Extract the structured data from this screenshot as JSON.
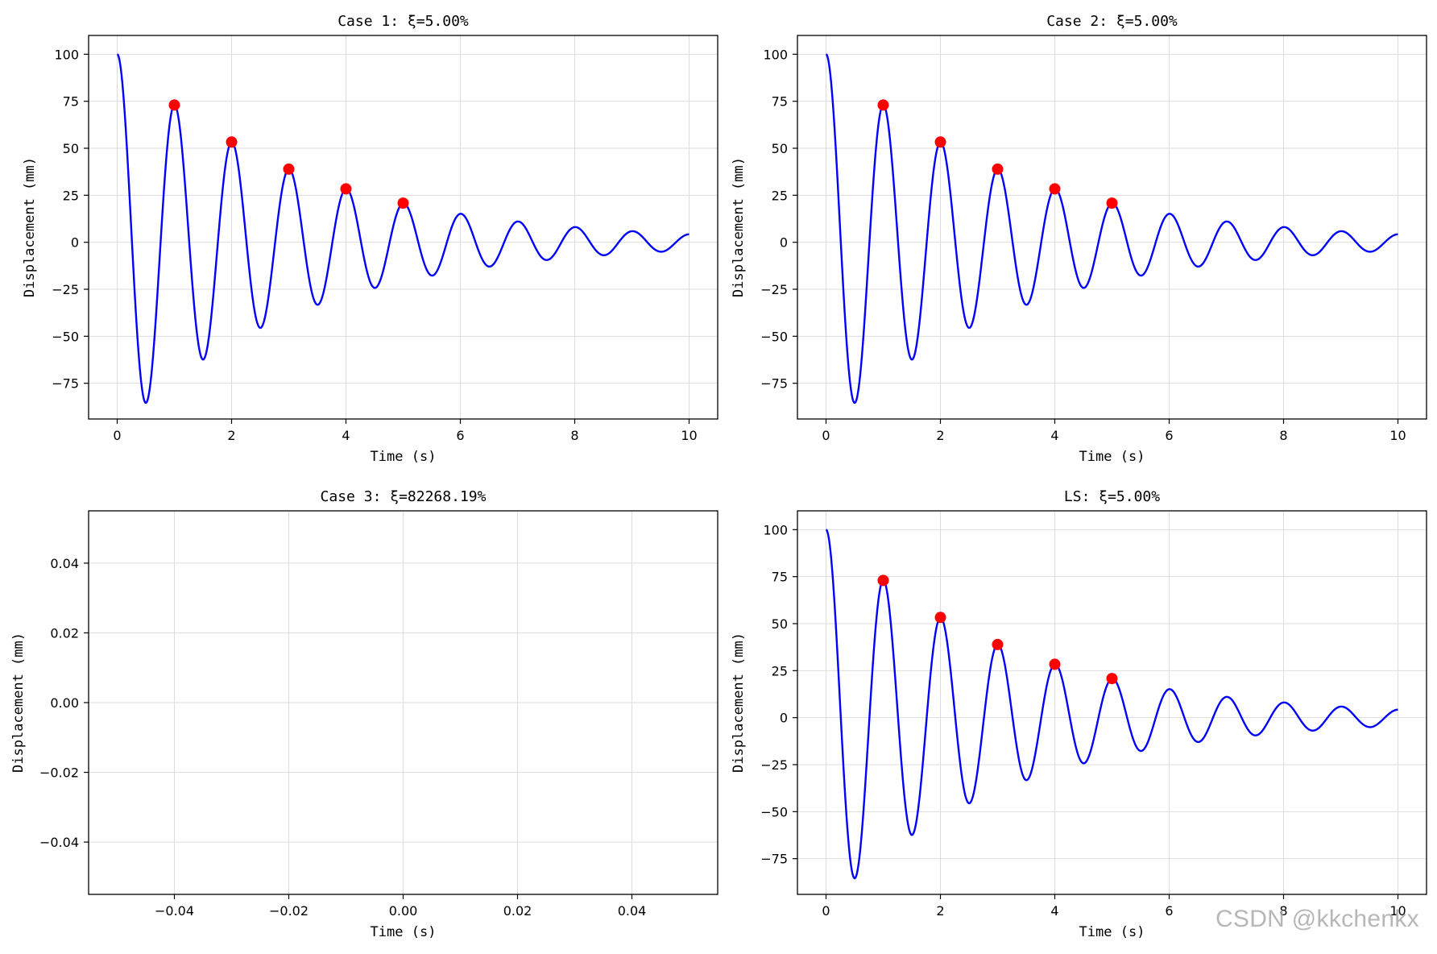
{
  "watermark": "CSDN @kkchenkx",
  "colors": {
    "line": "#0000ff",
    "peak": "#ff0000",
    "grid": "#dddddd",
    "axes": "#000000"
  },
  "chart_data": [
    {
      "type": "line",
      "title": "Case 1: ξ=5.00%",
      "xlabel": "Time (s)",
      "ylabel": "Displacement (mm)",
      "xlim": [
        -0.5,
        10.5
      ],
      "ylim": [
        -94,
        110
      ],
      "xticks": [
        0,
        2,
        4,
        6,
        8,
        10
      ],
      "xtick_labels": [
        "0",
        "2",
        "4",
        "6",
        "8",
        "10"
      ],
      "yticks": [
        -75,
        -50,
        -25,
        0,
        25,
        50,
        75,
        100
      ],
      "ytick_labels": [
        "−75",
        "−50",
        "−25",
        "0",
        "25",
        "50",
        "75",
        "100"
      ],
      "grid": true,
      "series": [
        {
          "kind": "damped-cosine",
          "amplitude": 100,
          "damping_ratio": 0.05,
          "period": 1.0,
          "t_start": 0,
          "t_end": 10
        },
        {
          "kind": "markers",
          "x": [
            1,
            2,
            3,
            4,
            5
          ],
          "y": [
            73.0,
            53.3,
            38.9,
            28.4,
            20.8
          ]
        }
      ]
    },
    {
      "type": "line",
      "title": "Case 2: ξ=5.00%",
      "xlabel": "Time (s)",
      "ylabel": "Displacement (mm)",
      "xlim": [
        -0.5,
        10.5
      ],
      "ylim": [
        -94,
        110
      ],
      "xticks": [
        0,
        2,
        4,
        6,
        8,
        10
      ],
      "xtick_labels": [
        "0",
        "2",
        "4",
        "6",
        "8",
        "10"
      ],
      "yticks": [
        -75,
        -50,
        -25,
        0,
        25,
        50,
        75,
        100
      ],
      "ytick_labels": [
        "−75",
        "−50",
        "−25",
        "0",
        "25",
        "50",
        "75",
        "100"
      ],
      "grid": true,
      "series": [
        {
          "kind": "damped-cosine",
          "amplitude": 100,
          "damping_ratio": 0.05,
          "period": 1.0,
          "t_start": 0,
          "t_end": 10
        },
        {
          "kind": "markers",
          "x": [
            1,
            2,
            3,
            4,
            5
          ],
          "y": [
            73.0,
            53.3,
            38.9,
            28.4,
            20.8
          ]
        }
      ]
    },
    {
      "type": "line",
      "title": "Case 3: ξ=82268.19%",
      "xlabel": "Time (s)",
      "ylabel": "Displacement (mm)",
      "xlim": [
        -0.055,
        0.055
      ],
      "ylim": [
        -0.055,
        0.055
      ],
      "xticks": [
        -0.04,
        -0.02,
        0.0,
        0.02,
        0.04
      ],
      "xtick_labels": [
        "−0.04",
        "−0.02",
        "0.00",
        "0.02",
        "0.04"
      ],
      "yticks": [
        -0.04,
        -0.02,
        0.0,
        0.02,
        0.04
      ],
      "ytick_labels": [
        "−0.04",
        "−0.02",
        "0.00",
        "0.02",
        "0.04"
      ],
      "grid": true,
      "series": []
    },
    {
      "type": "line",
      "title": "LS: ξ=5.00%",
      "xlabel": "Time (s)",
      "ylabel": "Displacement (mm)",
      "xlim": [
        -0.5,
        10.5
      ],
      "ylim": [
        -94,
        110
      ],
      "xticks": [
        0,
        2,
        4,
        6,
        8,
        10
      ],
      "xtick_labels": [
        "0",
        "2",
        "4",
        "6",
        "8",
        "10"
      ],
      "yticks": [
        -75,
        -50,
        -25,
        0,
        25,
        50,
        75,
        100
      ],
      "ytick_labels": [
        "−75",
        "−50",
        "−25",
        "0",
        "25",
        "50",
        "75",
        "100"
      ],
      "grid": true,
      "series": [
        {
          "kind": "damped-cosine",
          "amplitude": 100,
          "damping_ratio": 0.05,
          "period": 1.0,
          "t_start": 0,
          "t_end": 10
        },
        {
          "kind": "markers",
          "x": [
            1,
            2,
            3,
            4,
            5
          ],
          "y": [
            73.0,
            53.3,
            38.9,
            28.4,
            20.8
          ]
        }
      ]
    }
  ]
}
